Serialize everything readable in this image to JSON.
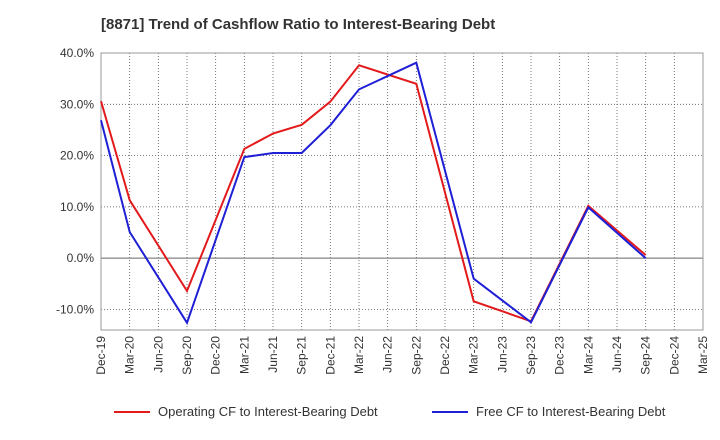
{
  "title": "[8871]  Trend of Cashflow Ratio to Interest-Bearing Debt",
  "chart_data": {
    "type": "line",
    "x": [
      "Dec-19",
      "Mar-20",
      "Jun-20",
      "Sep-20",
      "Dec-20",
      "Mar-21",
      "Jun-21",
      "Sep-21",
      "Dec-21",
      "Mar-22",
      "Jun-22",
      "Sep-22",
      "Dec-22",
      "Mar-23",
      "Jun-23",
      "Sep-23",
      "Dec-23",
      "Mar-24",
      "Jun-24",
      "Sep-24",
      "Dec-24",
      "Mar-25"
    ],
    "ylim": [
      -14,
      40
    ],
    "yticks": [
      -10,
      0,
      10,
      20,
      30,
      40
    ],
    "ytick_labels": [
      "-10.0%",
      "0.0%",
      "10.0%",
      "20.0%",
      "30.0%",
      "40.0%"
    ],
    "grid": true,
    "legend_position": "bottom",
    "series": [
      {
        "name": "Operating CF to Interest-Bearing Debt",
        "color": "#e31a1c",
        "values": [
          30.6,
          11.3,
          null,
          -6.4,
          null,
          21.3,
          24.3,
          26.0,
          30.5,
          37.6,
          null,
          34.0,
          null,
          -8.4,
          null,
          -12.3,
          null,
          10.2,
          null,
          0.6,
          null,
          null
        ]
      },
      {
        "name": "Free CF to Interest-Bearing Debt",
        "color": "#1f1fd6",
        "values": [
          26.9,
          5.1,
          null,
          -12.6,
          null,
          19.7,
          20.5,
          20.5,
          25.9,
          32.9,
          null,
          38.1,
          null,
          -4.0,
          null,
          -12.5,
          null,
          9.9,
          null,
          0.0,
          null,
          null
        ]
      }
    ]
  }
}
